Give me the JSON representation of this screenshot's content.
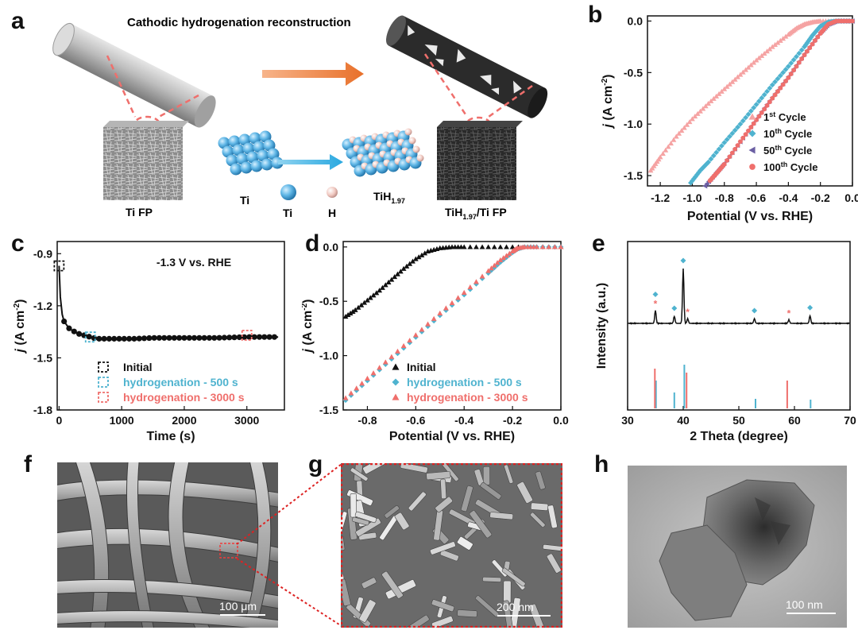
{
  "figure": {
    "panel_letters": [
      "a",
      "b",
      "c",
      "d",
      "e",
      "f",
      "g",
      "h"
    ],
    "colors": {
      "black": "#111111",
      "blue": "#4fb3cf",
      "red": "#ef6f6c",
      "pink": "#f5a3a3",
      "purple": "#6b5fa3",
      "arrow_orange": "#e8702a",
      "arrow_blue": "#29a8e0"
    }
  },
  "panel_a": {
    "title": "Cathodic hydrogenation reconstruction",
    "labels": {
      "ti_fp": "Ti FP",
      "ti": "Ti",
      "ti_legend": "Ti",
      "h_legend": "H",
      "tih_main": "TiH",
      "tih_sub": "1.97",
      "tih_fp_main": "TiH",
      "tih_fp_sub": "1.97",
      "tih_fp_suffix": "/Ti FP"
    }
  },
  "panel_b": {
    "ylabel_j": "j",
    "ylabel_rest": " (A cm",
    "ylabel_sup": "-2",
    "ylabel_end": ")",
    "xlabel": "Potential (V vs. RHE)",
    "legend": [
      {
        "pre": "1",
        "sup": "st",
        "post": " Cycle"
      },
      {
        "pre": "10",
        "sup": "th",
        "post": " Cycle"
      },
      {
        "pre": "50",
        "sup": "th",
        "post": " Cycle"
      },
      {
        "pre": "100",
        "sup": "th",
        "post": " Cycle"
      }
    ]
  },
  "panel_c": {
    "annotation": "-1.3 V vs. RHE",
    "legend": [
      "Initial",
      "hydrogenation - 500 s",
      "hydrogenation - 3000 s"
    ],
    "xlabel": "Time (s)"
  },
  "panel_d": {
    "legend": [
      "Initial",
      "hydrogenation - 500 s",
      "hydrogenation - 3000 s"
    ],
    "xlabel": "Potential (V vs. RHE)"
  },
  "panel_e": {
    "ylabel": "Intensity (a.u.)",
    "xlabel": "2 Theta (degree)"
  },
  "panel_f": {
    "scale": "100 μm"
  },
  "panel_g": {
    "scale": "200 nm"
  },
  "panel_h": {
    "scale": "100 nm"
  },
  "chart_data": [
    {
      "id": "b",
      "type": "scatter",
      "title": "",
      "xlabel": "Potential (V vs. RHE)",
      "ylabel": "j (A cm-2)",
      "xlim": [
        -1.28,
        0.0
      ],
      "ylim": [
        -1.6,
        0.05
      ],
      "xticks": [
        "-1.2",
        "-1.0",
        "-0.8",
        "-0.6",
        "-0.4",
        "-0.2",
        "0.0"
      ],
      "yticks": [
        "0.0",
        "-0.5",
        "-1.0",
        "-1.5"
      ],
      "legend_position": "bottom-right",
      "series": [
        {
          "name": "1st Cycle",
          "marker": "triangle-up",
          "color": "#f5a3a3",
          "x": [
            -1.26,
            -1.2,
            -1.1,
            -1.0,
            -0.9,
            -0.8,
            -0.7,
            -0.6,
            -0.5,
            -0.4,
            -0.35,
            -0.3,
            -0.25,
            -0.2,
            -0.1,
            0.0
          ],
          "y": [
            -1.45,
            -1.32,
            -1.12,
            -0.95,
            -0.8,
            -0.66,
            -0.52,
            -0.38,
            -0.25,
            -0.13,
            -0.07,
            -0.03,
            -0.01,
            0.0,
            0.0,
            0.0
          ]
        },
        {
          "name": "10th Cycle",
          "marker": "diamond",
          "color": "#4fb3cf",
          "x": [
            -1.01,
            -0.95,
            -0.9,
            -0.8,
            -0.7,
            -0.6,
            -0.5,
            -0.4,
            -0.3,
            -0.25,
            -0.2,
            -0.15,
            -0.1,
            0.0
          ],
          "y": [
            -1.57,
            -1.45,
            -1.37,
            -1.18,
            -1.0,
            -0.81,
            -0.62,
            -0.44,
            -0.25,
            -0.14,
            -0.05,
            -0.01,
            0.0,
            0.0
          ]
        },
        {
          "name": "50th Cycle",
          "marker": "triangle-left",
          "color": "#6b5fa3",
          "x": [
            -0.92,
            -0.85,
            -0.8,
            -0.7,
            -0.6,
            -0.5,
            -0.4,
            -0.3,
            -0.2,
            -0.15,
            -0.1,
            0.0
          ],
          "y": [
            -1.6,
            -1.47,
            -1.38,
            -1.17,
            -0.95,
            -0.74,
            -0.54,
            -0.32,
            -0.11,
            -0.03,
            0.0,
            0.0
          ]
        },
        {
          "name": "100th Cycle",
          "marker": "circle",
          "color": "#ef6f6c",
          "x": [
            -0.89,
            -0.85,
            -0.8,
            -0.7,
            -0.6,
            -0.5,
            -0.4,
            -0.3,
            -0.2,
            -0.15,
            -0.1,
            0.0
          ],
          "y": [
            -1.55,
            -1.48,
            -1.39,
            -1.17,
            -0.96,
            -0.75,
            -0.55,
            -0.33,
            -0.12,
            -0.03,
            0.0,
            0.0
          ]
        }
      ]
    },
    {
      "id": "c",
      "type": "line",
      "title": "",
      "xlabel": "Time (s)",
      "ylabel": "j (A cm-2)",
      "xlim": [
        -30,
        3600
      ],
      "ylim": [
        -1.8,
        -0.83
      ],
      "xticks": [
        "0",
        "1000",
        "2000",
        "3000"
      ],
      "yticks": [
        "-0.9",
        "-1.2",
        "-1.5",
        "-1.8"
      ],
      "markers": [
        {
          "name": "Initial",
          "x": 0,
          "y": -0.97,
          "color": "#111111"
        },
        {
          "name": "hydrogenation - 500 s",
          "x": 500,
          "y": -1.38,
          "color": "#4fb3cf"
        },
        {
          "name": "hydrogenation - 3000 s",
          "x": 3000,
          "y": -1.37,
          "color": "#ef6f6c"
        }
      ],
      "series": [
        {
          "name": "",
          "color": "#111111",
          "x": [
            0,
            20,
            50,
            80,
            120,
            160,
            200,
            250,
            300,
            400,
            500,
            600,
            700,
            800,
            1000,
            1200,
            1500,
            2000,
            2500,
            3000,
            3300,
            3500
          ],
          "y": [
            -0.97,
            -1.15,
            -1.25,
            -1.29,
            -1.31,
            -1.33,
            -1.34,
            -1.35,
            -1.36,
            -1.37,
            -1.38,
            -1.39,
            -1.39,
            -1.39,
            -1.39,
            -1.39,
            -1.385,
            -1.385,
            -1.385,
            -1.38,
            -1.38,
            -1.38
          ]
        }
      ]
    },
    {
      "id": "d",
      "type": "scatter",
      "title": "",
      "xlabel": "Potential (V vs. RHE)",
      "ylabel": "j (A cm-2)",
      "xlim": [
        -0.9,
        0.0
      ],
      "ylim": [
        -1.5,
        0.05
      ],
      "xticks": [
        "-0.8",
        "-0.6",
        "-0.4",
        "-0.2",
        "0.0"
      ],
      "yticks": [
        "0.0",
        "-0.5",
        "-1.0",
        "-1.5"
      ],
      "legend_position": "bottom-left",
      "series": [
        {
          "name": "Initial",
          "marker": "triangle-up",
          "color": "#111111",
          "x": [
            -0.89,
            -0.85,
            -0.8,
            -0.75,
            -0.7,
            -0.65,
            -0.6,
            -0.55,
            -0.5,
            -0.45,
            -0.4,
            -0.3,
            -0.2,
            -0.1,
            0.0
          ],
          "y": [
            -0.64,
            -0.58,
            -0.49,
            -0.4,
            -0.3,
            -0.2,
            -0.11,
            -0.04,
            -0.01,
            0.0,
            0.0,
            0.0,
            0.0,
            0.0,
            0.0
          ]
        },
        {
          "name": "hydrogenation - 500 s",
          "marker": "diamond",
          "color": "#4fb3cf",
          "x": [
            -0.89,
            -0.8,
            -0.7,
            -0.6,
            -0.5,
            -0.4,
            -0.3,
            -0.25,
            -0.2,
            -0.18,
            -0.15,
            -0.1,
            0.0
          ],
          "y": [
            -1.41,
            -1.23,
            -1.03,
            -0.83,
            -0.63,
            -0.44,
            -0.24,
            -0.14,
            -0.05,
            -0.02,
            0.0,
            0.0,
            0.0
          ]
        },
        {
          "name": "hydrogenation - 3000 s",
          "marker": "triangle-up",
          "color": "#ef6f6c",
          "x": [
            -0.89,
            -0.8,
            -0.7,
            -0.6,
            -0.5,
            -0.4,
            -0.3,
            -0.25,
            -0.2,
            -0.18,
            -0.15,
            -0.1,
            0.0
          ],
          "y": [
            -1.39,
            -1.21,
            -1.01,
            -0.81,
            -0.61,
            -0.42,
            -0.22,
            -0.12,
            -0.04,
            -0.01,
            0.0,
            0.0,
            0.0
          ]
        }
      ]
    },
    {
      "id": "e",
      "type": "line",
      "title": "",
      "xlabel": "2 Theta (degree)",
      "ylabel": "Intensity (a.u.)",
      "xlim": [
        30,
        70
      ],
      "xticks": [
        "30",
        "40",
        "50",
        "60",
        "70"
      ],
      "measured_peaks": [
        {
          "x": 35.0,
          "height": 0.22,
          "marker": "both"
        },
        {
          "x": 38.4,
          "height": 0.12,
          "marker": "diamond"
        },
        {
          "x": 40.0,
          "height": 0.92,
          "marker": "diamond"
        },
        {
          "x": 40.8,
          "height": 0.08,
          "marker": "star"
        },
        {
          "x": 52.8,
          "height": 0.08,
          "marker": "diamond"
        },
        {
          "x": 59.0,
          "height": 0.06,
          "marker": "star"
        },
        {
          "x": 62.8,
          "height": 0.13,
          "marker": "diamond"
        }
      ],
      "reference_blue": [
        {
          "x": 35.1,
          "height": 0.35
        },
        {
          "x": 38.4,
          "height": 0.2
        },
        {
          "x": 40.2,
          "height": 0.55
        },
        {
          "x": 53.0,
          "height": 0.12
        },
        {
          "x": 62.9,
          "height": 0.11
        }
      ],
      "reference_red": [
        {
          "x": 34.9,
          "height": 0.5
        },
        {
          "x": 40.6,
          "height": 0.45
        },
        {
          "x": 58.7,
          "height": 0.35
        }
      ]
    }
  ]
}
